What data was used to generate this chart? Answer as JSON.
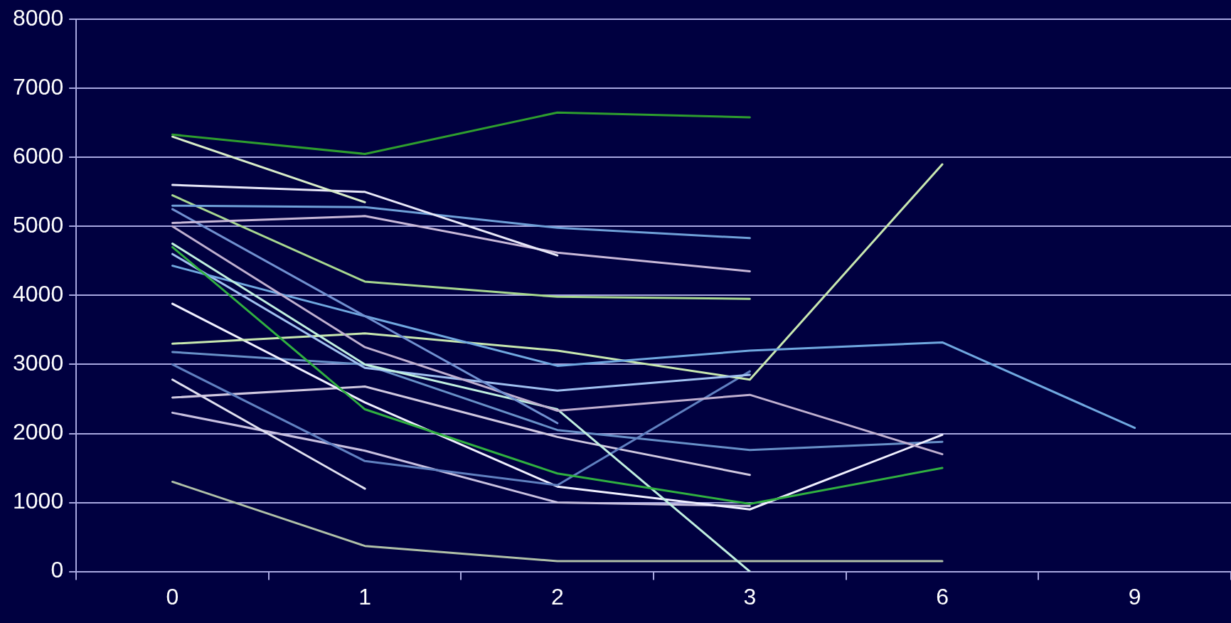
{
  "chart_data": {
    "type": "line",
    "categories": [
      "0",
      "1",
      "2",
      "3",
      "6",
      "9"
    ],
    "ylim": [
      0,
      8000
    ],
    "yticks": [
      0,
      1000,
      2000,
      3000,
      4000,
      5000,
      6000,
      7000,
      8000
    ],
    "grid": "y",
    "legend": false,
    "marker": "none",
    "line_style": "solid",
    "series": [
      {
        "color": "#2e9e2e",
        "values": [
          6330,
          6050,
          6650,
          6580,
          null,
          null
        ]
      },
      {
        "color": "#d8ecc8",
        "values": [
          6300,
          5350,
          null,
          null,
          null,
          null
        ]
      },
      {
        "color": "#e8e8f8",
        "values": [
          5600,
          5500,
          4580,
          null,
          null,
          null
        ]
      },
      {
        "color": "#6fa0d8",
        "values": [
          5300,
          5280,
          4980,
          4830,
          null,
          null
        ]
      },
      {
        "color": "#c8b8d8",
        "values": [
          5050,
          5150,
          4620,
          4350,
          null,
          null
        ]
      },
      {
        "color": "#a8d890",
        "values": [
          5450,
          4200,
          3980,
          3950,
          null,
          null
        ]
      },
      {
        "color": "#7090d0",
        "values": [
          5250,
          3700,
          2150,
          null,
          null,
          null
        ]
      },
      {
        "color": "#c0b0d0",
        "values": [
          5000,
          3250,
          2330,
          2560,
          1700,
          null
        ]
      },
      {
        "color": "#30b040",
        "values": [
          4700,
          2350,
          1420,
          980,
          1500,
          null
        ]
      },
      {
        "color": "#c0f0e0",
        "values": [
          4750,
          3000,
          2350,
          0,
          null,
          null
        ]
      },
      {
        "color": "#70a8e0",
        "values": [
          4430,
          3700,
          2980,
          3200,
          3320,
          2080
        ]
      },
      {
        "color": "#a0c0f0",
        "values": [
          4600,
          2950,
          2620,
          2850,
          null,
          null
        ]
      },
      {
        "color": "#c8e8b0",
        "values": [
          3300,
          3450,
          3200,
          2780,
          5900,
          null
        ]
      },
      {
        "color": "#6080c0",
        "values": [
          3000,
          1600,
          1250,
          2900,
          null,
          null
        ]
      },
      {
        "color": "#f0f0ff",
        "values": [
          3880,
          2450,
          1230,
          900,
          1980,
          null
        ]
      },
      {
        "color": "#d0c8e0",
        "values": [
          2520,
          2680,
          1950,
          1400,
          null,
          null
        ]
      },
      {
        "color": "#e0e0f0",
        "values": [
          2780,
          1200,
          null,
          null,
          null,
          null
        ]
      },
      {
        "color": "#c8c0e0",
        "values": [
          2300,
          1750,
          1000,
          950,
          null,
          null
        ]
      },
      {
        "color": "#6890c8",
        "values": [
          3180,
          3000,
          2050,
          1760,
          1880,
          null
        ]
      },
      {
        "color": "#b0c0a8",
        "values": [
          1300,
          370,
          150,
          150,
          150,
          null
        ]
      }
    ]
  }
}
